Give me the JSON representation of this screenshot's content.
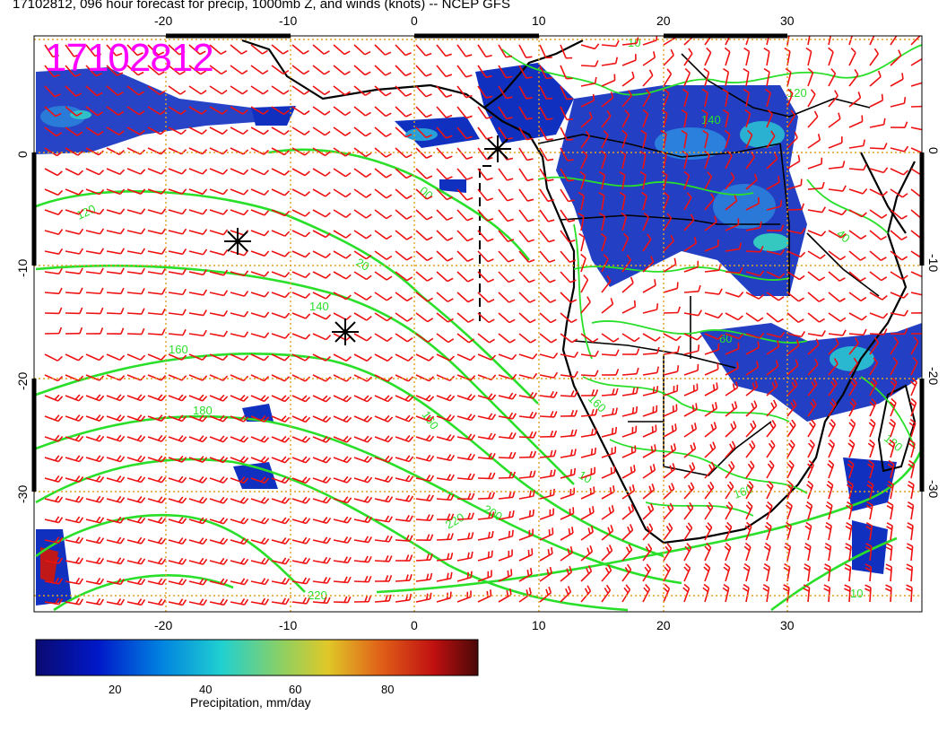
{
  "title": "17102812, 096 hour forecast for precip, 1000mb Z, and winds (knots) -- NCEP GFS",
  "stamp": "17102812",
  "axes": {
    "lon_ticks": [
      "-20",
      "-10",
      "0",
      "10",
      "20",
      "30"
    ],
    "lat_ticks": [
      "0",
      "-10",
      "-20",
      "-30"
    ]
  },
  "colorbar": {
    "label": "Precipitation, mm/day",
    "ticks": [
      "20",
      "40",
      "60",
      "80"
    ],
    "colors": [
      "#0a0a8c",
      "#0050d0",
      "#20c8d8",
      "#c8c83c",
      "#d84020",
      "#b00010",
      "#501010"
    ]
  },
  "style": {
    "contour_color": "#2adf2a",
    "barb_color": "#ee1111",
    "grid_color": "#e0a020",
    "coast_color": "#000000"
  },
  "contour_labels": [
    "120",
    "20",
    "140",
    "160",
    "180",
    "160",
    "200",
    "220",
    "220",
    "10",
    "160",
    "180",
    "140",
    "40",
    "120",
    "10",
    "60",
    "160",
    "10",
    "00"
  ],
  "markers": [
    "storm-center-1",
    "storm-center-2",
    "storm-center-3"
  ]
}
